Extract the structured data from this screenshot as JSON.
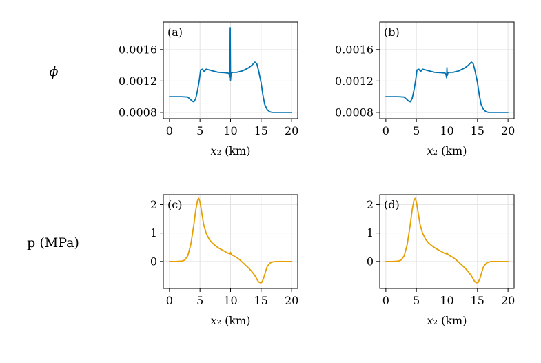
{
  "row_labels": {
    "phi": "ϕ",
    "p": "p (MPa)"
  },
  "chart_data": [
    {
      "type": "line",
      "panel_label": "(a)",
      "xlabel": "x₂ (km)",
      "ylabel": "ϕ",
      "xlim": [
        -1,
        21
      ],
      "ylim": [
        0.00072,
        0.00195
      ],
      "xticks": [
        0,
        5,
        10,
        15,
        20
      ],
      "xtick_labels": [
        "0",
        "5",
        "10",
        "15",
        "20"
      ],
      "yticks": [
        0.0008,
        0.0012,
        0.0016
      ],
      "ytick_labels": [
        "0.0008",
        "0.0012",
        "0.0016"
      ],
      "grid": true,
      "color": "#0072b2",
      "series": [
        {
          "x": [
            0,
            1,
            2,
            3,
            3.5,
            3.8,
            4.0,
            4.3,
            4.6,
            4.9,
            5.1,
            5.4,
            5.7,
            6,
            6.5,
            7,
            8,
            9,
            9.6,
            9.8,
            9.9,
            9.95,
            10.0,
            10.05,
            10.1,
            10.2,
            10.4,
            11,
            12,
            13,
            13.5,
            14,
            14.3,
            14.6,
            15,
            15.3,
            15.6,
            16,
            16.4,
            16.8,
            17.2,
            18,
            19,
            20
          ],
          "y": [
            0.001,
            0.001,
            0.001,
            0.000995,
            0.00096,
            0.00094,
            0.000935,
            0.000975,
            0.00108,
            0.00122,
            0.00134,
            0.00135,
            0.00132,
            0.00135,
            0.00134,
            0.00133,
            0.00131,
            0.001305,
            0.0013,
            0.00129,
            0.00125,
            0.00188,
            0.00121,
            0.00126,
            0.0013,
            0.001305,
            0.00131,
            0.00131,
            0.00133,
            0.00137,
            0.0014,
            0.00144,
            0.00142,
            0.00133,
            0.00118,
            0.00102,
            0.0009,
            0.000835,
            0.000808,
            0.0008,
            0.0008,
            0.0008,
            0.0008,
            0.0008
          ]
        }
      ]
    },
    {
      "type": "line",
      "panel_label": "(b)",
      "xlabel": "x₂ (km)",
      "ylabel": "ϕ",
      "xlim": [
        -1,
        21
      ],
      "ylim": [
        0.00072,
        0.00195
      ],
      "xticks": [
        0,
        5,
        10,
        15,
        20
      ],
      "xtick_labels": [
        "0",
        "5",
        "10",
        "15",
        "20"
      ],
      "yticks": [
        0.0008,
        0.0012,
        0.0016
      ],
      "ytick_labels": [
        "0.0008",
        "0.0012",
        "0.0016"
      ],
      "grid": true,
      "color": "#0072b2",
      "series": [
        {
          "x": [
            0,
            1,
            2,
            3,
            3.5,
            3.8,
            4.0,
            4.3,
            4.6,
            4.9,
            5.1,
            5.4,
            5.7,
            6,
            6.5,
            7,
            8,
            9,
            9.7,
            9.85,
            9.95,
            10.0,
            10.05,
            10.15,
            10.4,
            11,
            12,
            13,
            13.5,
            14,
            14.3,
            14.6,
            15,
            15.3,
            15.6,
            16,
            16.4,
            16.8,
            17.2,
            18,
            19,
            20
          ],
          "y": [
            0.001,
            0.001,
            0.001,
            0.000995,
            0.00096,
            0.00094,
            0.000935,
            0.000975,
            0.00108,
            0.00122,
            0.00134,
            0.00135,
            0.00132,
            0.00135,
            0.00134,
            0.00133,
            0.00131,
            0.001305,
            0.0013,
            0.00128,
            0.00124,
            0.00137,
            0.00127,
            0.0013,
            0.00131,
            0.00131,
            0.00133,
            0.00137,
            0.0014,
            0.00144,
            0.00142,
            0.00133,
            0.00118,
            0.00102,
            0.0009,
            0.000835,
            0.000808,
            0.0008,
            0.0008,
            0.0008,
            0.0008,
            0.0008
          ]
        }
      ]
    },
    {
      "type": "line",
      "panel_label": "(c)",
      "xlabel": "x₂ (km)",
      "ylabel": "p (MPa)",
      "xlim": [
        -1,
        21
      ],
      "ylim": [
        -0.95,
        2.35
      ],
      "xticks": [
        0,
        5,
        10,
        15,
        20
      ],
      "xtick_labels": [
        "0",
        "5",
        "10",
        "15",
        "20"
      ],
      "yticks": [
        0,
        1,
        2
      ],
      "ytick_labels": [
        "0",
        "1",
        "2"
      ],
      "grid": true,
      "color": "#e69f00",
      "series": [
        {
          "x": [
            0,
            1,
            2,
            2.5,
            3,
            3.5,
            4,
            4.3,
            4.6,
            4.8,
            5.0,
            5.3,
            5.6,
            6,
            6.5,
            7,
            7.5,
            8,
            8.5,
            9,
            9.5,
            9.9,
            10.0,
            10.1,
            10.5,
            11,
            11.5,
            12,
            12.5,
            13,
            13.5,
            14,
            14.3,
            14.6,
            14.9,
            15.1,
            15.4,
            15.7,
            16,
            16.5,
            17,
            17.5,
            18,
            19,
            20
          ],
          "y": [
            0,
            0,
            0.01,
            0.05,
            0.2,
            0.6,
            1.3,
            1.8,
            2.15,
            2.22,
            2.1,
            1.7,
            1.3,
            1.0,
            0.78,
            0.65,
            0.56,
            0.48,
            0.42,
            0.36,
            0.3,
            0.27,
            0.32,
            0.25,
            0.2,
            0.14,
            0.06,
            -0.04,
            -0.14,
            -0.24,
            -0.36,
            -0.5,
            -0.62,
            -0.72,
            -0.75,
            -0.74,
            -0.6,
            -0.38,
            -0.18,
            -0.05,
            -0.01,
            0,
            0,
            0,
            0
          ]
        }
      ]
    },
    {
      "type": "line",
      "panel_label": "(d)",
      "xlabel": "x₂ (km)",
      "ylabel": "p (MPa)",
      "xlim": [
        -1,
        21
      ],
      "ylim": [
        -0.95,
        2.35
      ],
      "xticks": [
        0,
        5,
        10,
        15,
        20
      ],
      "xtick_labels": [
        "0",
        "5",
        "10",
        "15",
        "20"
      ],
      "yticks": [
        0,
        1,
        2
      ],
      "ytick_labels": [
        "0",
        "1",
        "2"
      ],
      "grid": true,
      "color": "#e69f00",
      "series": [
        {
          "x": [
            0,
            1,
            2,
            2.5,
            3,
            3.5,
            4,
            4.3,
            4.6,
            4.8,
            5.0,
            5.3,
            5.6,
            6,
            6.5,
            7,
            7.5,
            8,
            8.5,
            9,
            9.5,
            9.9,
            10.0,
            10.1,
            10.5,
            11,
            11.5,
            12,
            12.5,
            13,
            13.5,
            14,
            14.3,
            14.6,
            14.9,
            15.1,
            15.4,
            15.7,
            16,
            16.5,
            17,
            17.5,
            18,
            19,
            20
          ],
          "y": [
            0,
            0,
            0.01,
            0.05,
            0.2,
            0.6,
            1.3,
            1.8,
            2.15,
            2.22,
            2.1,
            1.7,
            1.3,
            1.0,
            0.78,
            0.65,
            0.56,
            0.48,
            0.42,
            0.36,
            0.3,
            0.27,
            0.31,
            0.26,
            0.2,
            0.14,
            0.06,
            -0.04,
            -0.14,
            -0.24,
            -0.36,
            -0.5,
            -0.62,
            -0.72,
            -0.75,
            -0.74,
            -0.6,
            -0.38,
            -0.18,
            -0.05,
            -0.01,
            0,
            0,
            0,
            0
          ]
        }
      ]
    }
  ]
}
